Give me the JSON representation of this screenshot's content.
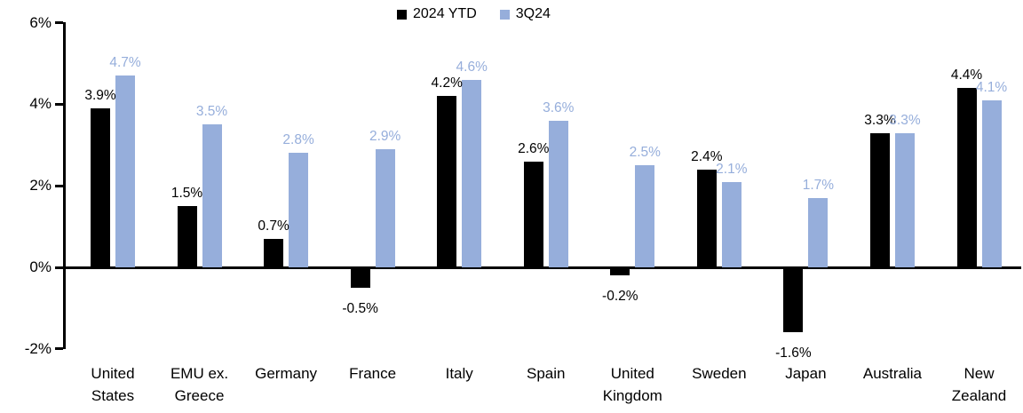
{
  "chart_data": {
    "type": "bar",
    "title": "",
    "xlabel": "",
    "ylabel": "",
    "categories": [
      "United States",
      "EMU ex. Greece",
      "Germany",
      "France",
      "Italy",
      "Spain",
      "United Kingdom",
      "Sweden",
      "Japan",
      "Australia",
      "New Zealand"
    ],
    "series": [
      {
        "name": "2024 YTD",
        "color": "#000000",
        "label_color": "#000000",
        "values": [
          3.9,
          1.5,
          0.7,
          -0.5,
          4.2,
          2.6,
          -0.2,
          2.4,
          -1.6,
          3.3,
          4.4
        ],
        "labels": [
          "3.9%",
          "1.5%",
          "0.7%",
          "-0.5%",
          "4.2%",
          "2.6%",
          "-0.2%",
          "2.4%",
          "-1.6%",
          "3.3%",
          "4.4%"
        ]
      },
      {
        "name": "3Q24",
        "color": "#96AEDB",
        "label_color": "#96AEDB",
        "values": [
          4.7,
          3.5,
          2.8,
          2.9,
          4.6,
          3.6,
          2.5,
          2.1,
          1.7,
          3.3,
          4.1
        ],
        "labels": [
          "4.7%",
          "3.5%",
          "2.8%",
          "2.9%",
          "4.6%",
          "3.6%",
          "2.5%",
          "2.1%",
          "1.7%",
          "3.3%",
          "4.1%"
        ]
      }
    ],
    "ylim": [
      -2,
      6
    ],
    "yticks": [
      6,
      4,
      2,
      0,
      -2
    ],
    "ytick_labels": [
      "6%",
      "4%",
      "2%",
      "0%",
      "-2%"
    ],
    "grid": false,
    "legend_position": "top-center"
  }
}
